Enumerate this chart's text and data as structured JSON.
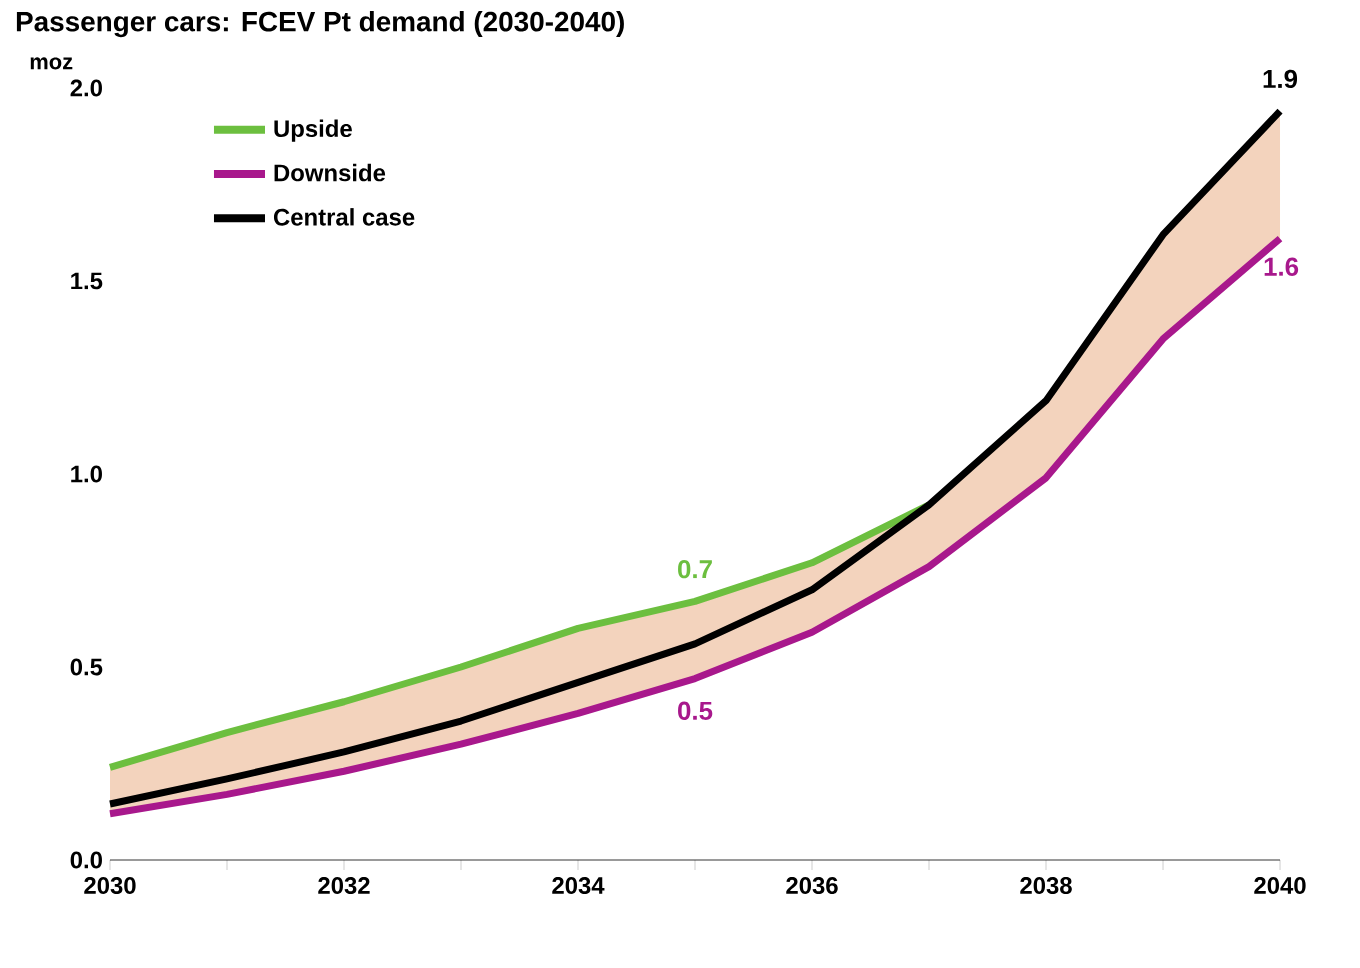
{
  "chart_data": {
    "type": "line",
    "title": "Passenger cars: FCEV Pt demand (2030-2040)",
    "ylabel": "moz",
    "x": [
      2030,
      2031,
      2032,
      2033,
      2034,
      2035,
      2036,
      2037,
      2038,
      2039,
      2040
    ],
    "series": [
      {
        "name": "Upside",
        "color": "#6cbf3f",
        "x": [
          2030,
          2031,
          2032,
          2033,
          2034,
          2035,
          2036,
          2037
        ],
        "values": [
          0.24,
          0.33,
          0.41,
          0.5,
          0.6,
          0.67,
          0.77,
          0.92
        ],
        "value_labels": [
          null,
          null,
          null,
          null,
          null,
          "0.7",
          null,
          null
        ]
      },
      {
        "name": "Downside",
        "color": "#a8188c",
        "values": [
          0.12,
          0.17,
          0.23,
          0.3,
          0.38,
          0.47,
          0.59,
          0.76,
          0.99,
          1.35,
          1.61
        ],
        "value_labels": [
          null,
          null,
          null,
          null,
          null,
          "0.5",
          null,
          null,
          null,
          null,
          "1.6"
        ]
      },
      {
        "name": "Central case",
        "color": "#000000",
        "values": [
          0.145,
          0.21,
          0.28,
          0.36,
          0.46,
          0.56,
          0.7,
          0.92,
          1.19,
          1.62,
          1.94
        ],
        "value_labels": [
          null,
          null,
          null,
          null,
          null,
          null,
          null,
          null,
          null,
          null,
          "1.9"
        ],
        "lower": [
          0.12,
          0.17,
          0.23,
          0.3,
          0.38,
          0.47,
          0.59,
          0.76,
          0.99,
          1.35,
          1.61
        ],
        "upper": [
          0.24,
          0.33,
          0.41,
          0.5,
          0.6,
          0.67,
          0.77,
          0.92,
          1.19,
          1.62,
          1.94
        ]
      }
    ],
    "xlim": [
      2030,
      2040
    ],
    "ylim": [
      0,
      2.0
    ],
    "xticks": [
      2030,
      {
        "value": 2031,
        "label": null
      },
      2032,
      {
        "value": 2033,
        "label": null
      },
      2034,
      {
        "value": 2035,
        "label": null
      },
      2036,
      {
        "value": 2037,
        "label": null
      },
      2038,
      {
        "value": 2039,
        "label": null
      },
      2040
    ],
    "yticks": [
      {
        "value": 0,
        "label": "0.0"
      },
      {
        "value": 0.5,
        "label": "0.5"
      },
      {
        "value": 1,
        "label": "1.0"
      },
      {
        "value": 1.5,
        "label": "1.5"
      },
      {
        "value": 2,
        "label": "2.0"
      }
    ],
    "legend": "top left",
    "grid": false,
    "marker": "none",
    "line_style": "solid"
  }
}
